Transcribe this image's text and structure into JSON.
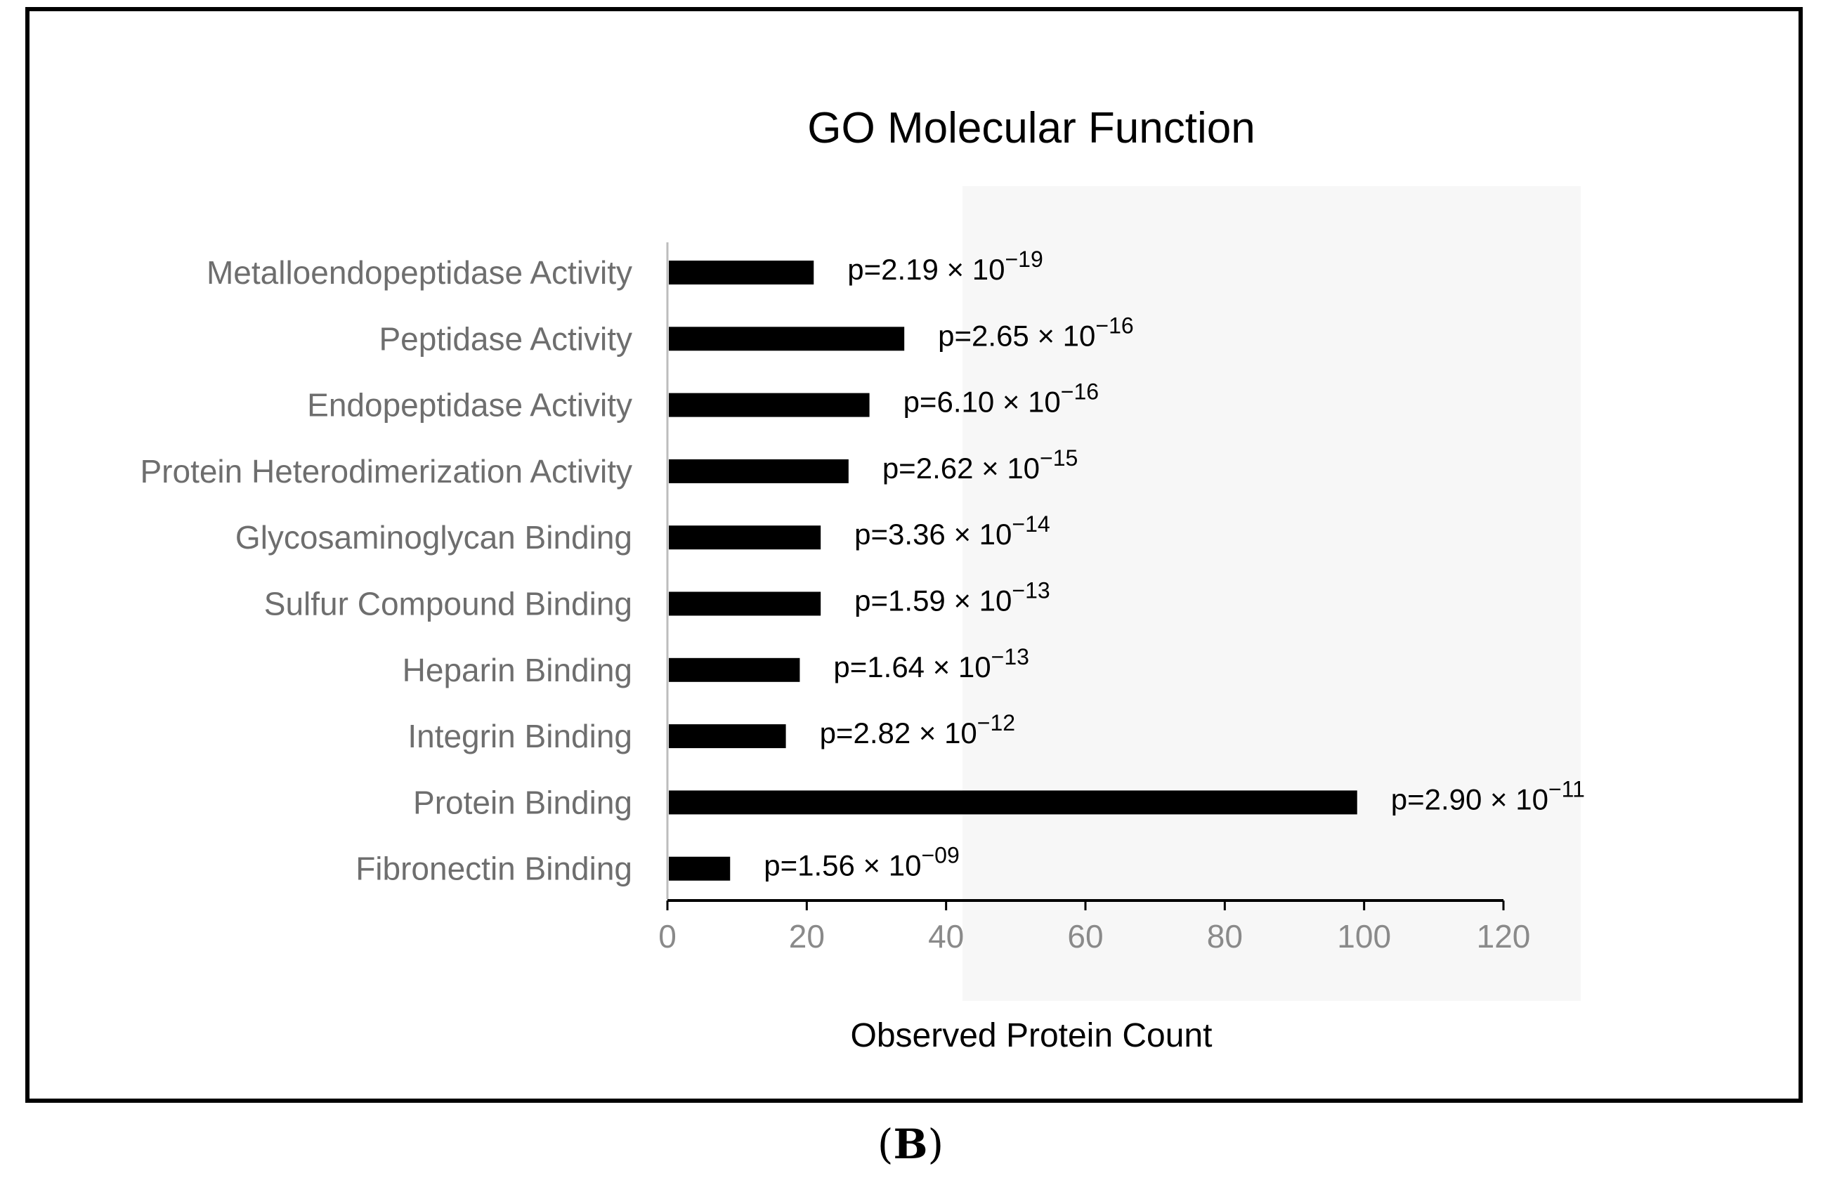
{
  "chart_data": {
    "type": "bar",
    "orientation": "horizontal",
    "title": "GO Molecular Function",
    "xlabel": "Observed Protein Count",
    "ylabel": "",
    "xlim": [
      0,
      120
    ],
    "xticks": [
      0,
      20,
      40,
      60,
      80,
      100,
      120
    ],
    "grid": false,
    "legend": "none",
    "categories": [
      "Metalloendopeptidase Activity",
      "Peptidase Activity",
      "Endopeptidase Activity",
      "Protein Heterodimerization Activity",
      "Glycosaminoglycan Binding",
      "Sulfur Compound Binding",
      "Heparin Binding",
      "Integrin Binding",
      "Protein Binding",
      "Fibronectin Binding"
    ],
    "values": [
      21,
      34,
      29,
      26,
      22,
      22,
      19,
      17,
      99,
      9
    ],
    "annotations": [
      {
        "prefix": "p=2.19 × 10",
        "exponent": "−19"
      },
      {
        "prefix": "p=2.65 × 10",
        "exponent": "−16"
      },
      {
        "prefix": "p=6.10 × 10",
        "exponent": "−16"
      },
      {
        "prefix": "p=2.62 × 10",
        "exponent": "−15"
      },
      {
        "prefix": "p=3.36 × 10",
        "exponent": "−14"
      },
      {
        "prefix": "p=1.59 × 10",
        "exponent": "−13"
      },
      {
        "prefix": "p=1.64 × 10",
        "exponent": "−13"
      },
      {
        "prefix": "p=2.82 × 10",
        "exponent": "−12"
      },
      {
        "prefix": "p=2.90 × 10",
        "exponent": "−11"
      },
      {
        "prefix": "p=1.56 × 10",
        "exponent": "−09"
      }
    ],
    "colors": {
      "bar": "#000000",
      "category_label": "#6e6e6e",
      "tick_label": "#8a8a8a",
      "axis": "#000000",
      "title": "#000000"
    }
  },
  "figure": {
    "panel_open": "(",
    "panel_letter": "B",
    "panel_close": ")"
  }
}
